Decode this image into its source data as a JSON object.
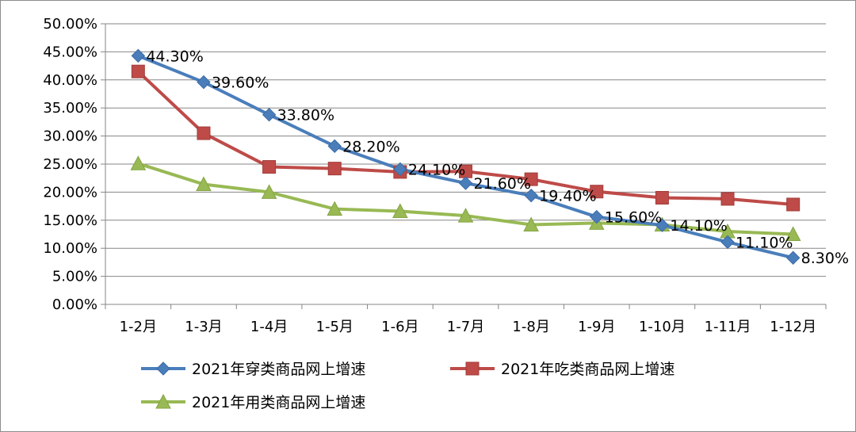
{
  "chart_data": {
    "type": "line",
    "categories": [
      "1-2月",
      "1-3月",
      "1-4月",
      "1-5月",
      "1-6月",
      "1-7月",
      "1-8月",
      "1-9月",
      "1-10月",
      "1-11月",
      "1-12月"
    ],
    "y_ticks": [
      "0.00%",
      "5.00%",
      "10.00%",
      "15.00%",
      "20.00%",
      "25.00%",
      "30.00%",
      "35.00%",
      "40.00%",
      "45.00%",
      "50.00%"
    ],
    "ylim": [
      0,
      50
    ],
    "grid": true,
    "legend_position": "bottom",
    "series": [
      {
        "name": "2021年穿类商品网上增速",
        "color": "#4a7ebb",
        "marker": "diamond",
        "values": [
          44.3,
          39.6,
          33.8,
          28.2,
          24.1,
          21.6,
          19.4,
          15.6,
          14.1,
          11.1,
          8.3
        ],
        "labels": [
          "44.30%",
          "39.60%",
          "33.80%",
          "28.20%",
          "24.10%",
          "21.60%",
          "19.40%",
          "15.60%",
          "14.10%",
          "11.10%",
          "8.30%"
        ]
      },
      {
        "name": "2021年吃类商品网上增速",
        "color": "#be4b48",
        "marker": "square",
        "values": [
          41.5,
          30.5,
          24.5,
          24.2,
          23.6,
          23.7,
          22.3,
          20.1,
          19.0,
          18.8,
          17.8
        ]
      },
      {
        "name": "2021年用类商品网上增速",
        "color": "#98b954",
        "marker": "triangle",
        "values": [
          25.1,
          21.4,
          20.0,
          17.0,
          16.6,
          15.8,
          14.2,
          14.5,
          14.2,
          13.0,
          12.5
        ]
      }
    ]
  }
}
